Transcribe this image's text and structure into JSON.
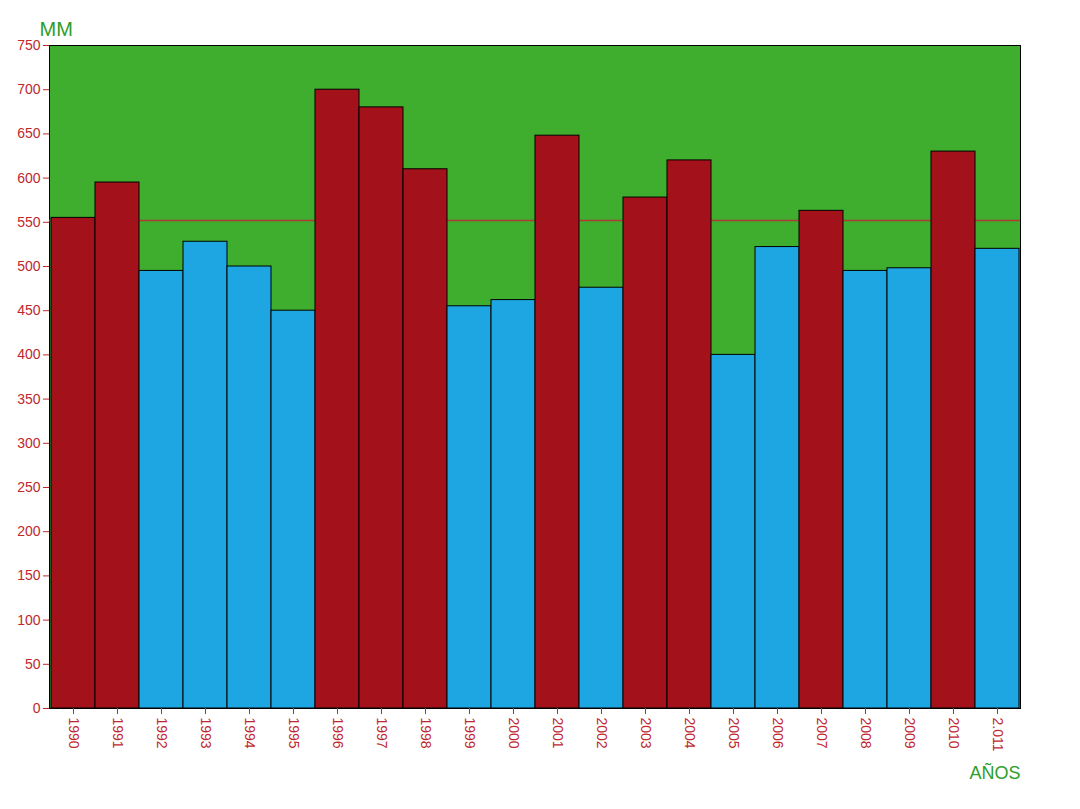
{
  "chart_data": {
    "type": "bar",
    "y_label": "MM",
    "x_label": "AÑOS",
    "categories": [
      "1990",
      "1991",
      "1992",
      "1993",
      "1994",
      "1995",
      "1996",
      "1997",
      "1998",
      "1999",
      "2000",
      "2001",
      "2002",
      "2003",
      "2004",
      "2005",
      "2006",
      "2007",
      "2008",
      "2009",
      "2010",
      "2.011"
    ],
    "values": [
      555,
      595,
      495,
      528,
      500,
      450,
      700,
      680,
      610,
      455,
      462,
      648,
      476,
      578,
      620,
      400,
      522,
      563,
      495,
      498,
      630,
      520
    ],
    "colors": [
      "#a3121a",
      "#a3121a",
      "#1ea6e3",
      "#1ea6e3",
      "#1ea6e3",
      "#1ea6e3",
      "#a3121a",
      "#a3121a",
      "#a3121a",
      "#1ea6e3",
      "#1ea6e3",
      "#a3121a",
      "#1ea6e3",
      "#a3121a",
      "#a3121a",
      "#1ea6e3",
      "#1ea6e3",
      "#a3121a",
      "#1ea6e3",
      "#1ea6e3",
      "#a3121a",
      "#1ea6e3"
    ],
    "reference_line": 552,
    "ylim": [
      0,
      750
    ],
    "yticks": [
      0,
      50,
      100,
      150,
      200,
      250,
      300,
      350,
      400,
      450,
      500,
      550,
      600,
      650,
      700,
      750
    ],
    "grid": false
  }
}
